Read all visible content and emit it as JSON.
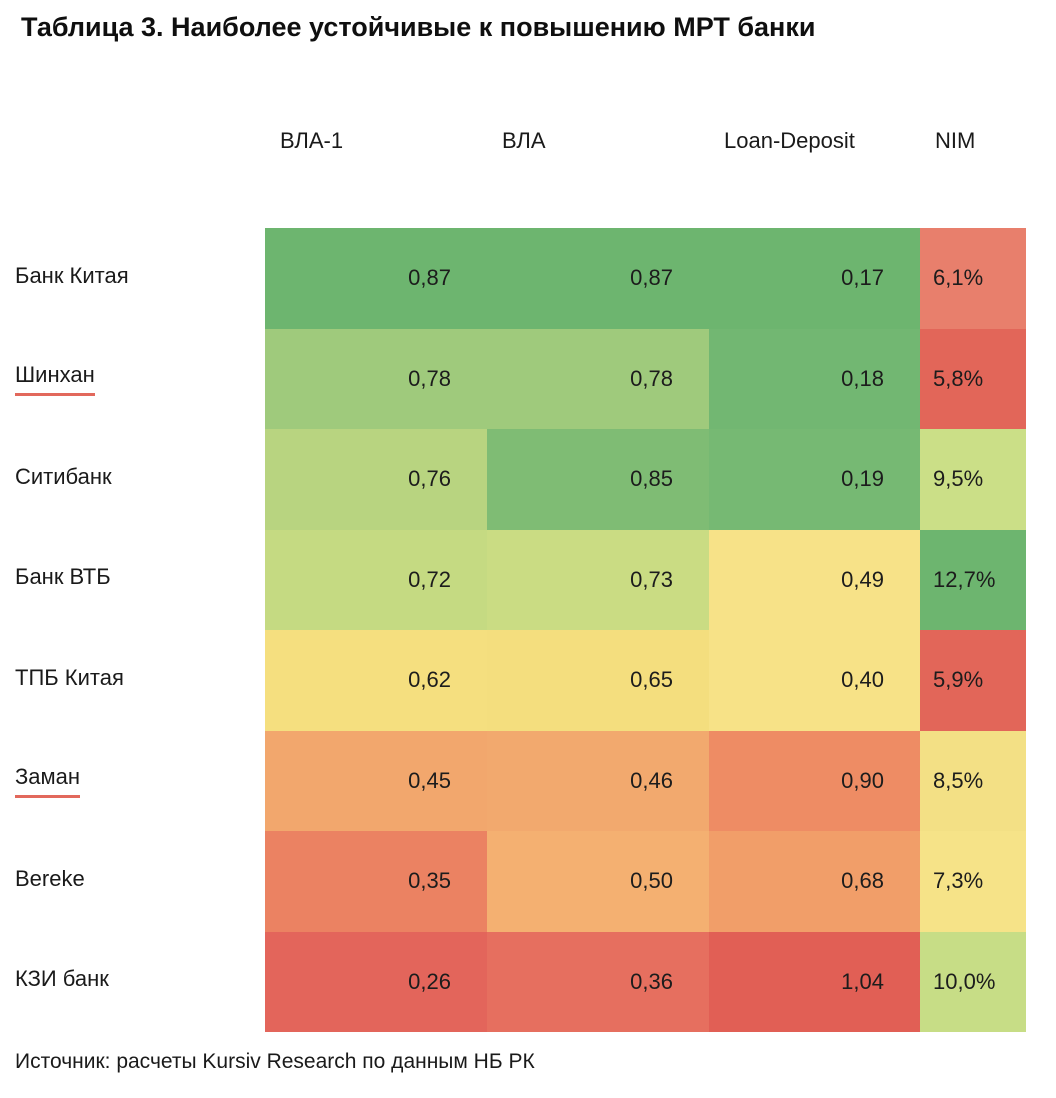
{
  "title": "Таблица 3. Наиболее устойчивые к повышению МРТ банки",
  "source": "Источник: расчеты Kursiv Research по данным НБ РК",
  "accent_underline_color": "#e2685c",
  "chart_data": {
    "type": "heatmap",
    "title": "Таблица 3. Наиболее устойчивые к повышению МРТ банки",
    "columns": [
      "ВЛА-1",
      "ВЛА",
      "Loan-Deposit",
      "NIM"
    ],
    "column_keys": [
      "vla-1",
      "vla",
      "loan-deposit",
      "nim"
    ],
    "rows": [
      {
        "bank": "Банк Китая",
        "underlined": false,
        "values": [
          "0,87",
          "0,87",
          "0,17",
          "6,1%"
        ],
        "values_numeric": [
          0.87,
          0.87,
          0.17,
          6.1
        ],
        "colors": [
          "#6db56f",
          "#6db56f",
          "#6db56f",
          "#e87f6c"
        ]
      },
      {
        "bank": "Шинхан",
        "underlined": true,
        "values": [
          "0,78",
          "0,78",
          "0,18",
          "5,8%"
        ],
        "values_numeric": [
          0.78,
          0.78,
          0.18,
          5.8
        ],
        "colors": [
          "#9fca7c",
          "#9fca7c",
          "#72b772",
          "#e26659"
        ]
      },
      {
        "bank": "Ситибанк",
        "underlined": false,
        "values": [
          "0,76",
          "0,85",
          "0,19",
          "9,5%"
        ],
        "values_numeric": [
          0.76,
          0.85,
          0.19,
          9.5
        ],
        "colors": [
          "#b8d480",
          "#7fbc74",
          "#76b973",
          "#cbdf87"
        ]
      },
      {
        "bank": "Банк ВТБ",
        "underlined": false,
        "values": [
          "0,72",
          "0,73",
          "0,49",
          "12,7%"
        ],
        "values_numeric": [
          0.72,
          0.73,
          0.49,
          12.7
        ],
        "colors": [
          "#c5da82",
          "#cadc83",
          "#f7e288",
          "#6db56f"
        ]
      },
      {
        "bank": "ТПБ Китая",
        "underlined": false,
        "values": [
          "0,62",
          "0,65",
          "0,40",
          "5,9%"
        ],
        "values_numeric": [
          0.62,
          0.65,
          0.4,
          5.9
        ],
        "colors": [
          "#f5df7f",
          "#f4de7e",
          "#f7e287",
          "#e26659"
        ]
      },
      {
        "bank": "Заман",
        "underlined": true,
        "values": [
          "0,45",
          "0,46",
          "0,90",
          "8,5%"
        ],
        "values_numeric": [
          0.45,
          0.46,
          0.9,
          8.5
        ],
        "colors": [
          "#f2a76d",
          "#f2a96e",
          "#ee8c64",
          "#f3e085"
        ]
      },
      {
        "bank": "Bereke",
        "underlined": false,
        "values": [
          "0,35",
          "0,50",
          "0,68",
          "7,3%"
        ],
        "values_numeric": [
          0.35,
          0.5,
          0.68,
          7.3
        ],
        "colors": [
          "#eb8262",
          "#f4b071",
          "#f19e69",
          "#f6e388"
        ]
      },
      {
        "bank": "КЗИ банк",
        "underlined": false,
        "values": [
          "0,26",
          "0,36",
          "1,04",
          "10,0%"
        ],
        "values_numeric": [
          0.26,
          0.36,
          1.04,
          10.0
        ],
        "colors": [
          "#e3655b",
          "#e66f5f",
          "#e15f55",
          "#c7dd86"
        ]
      }
    ],
    "legend_position": "none",
    "grid": false
  }
}
